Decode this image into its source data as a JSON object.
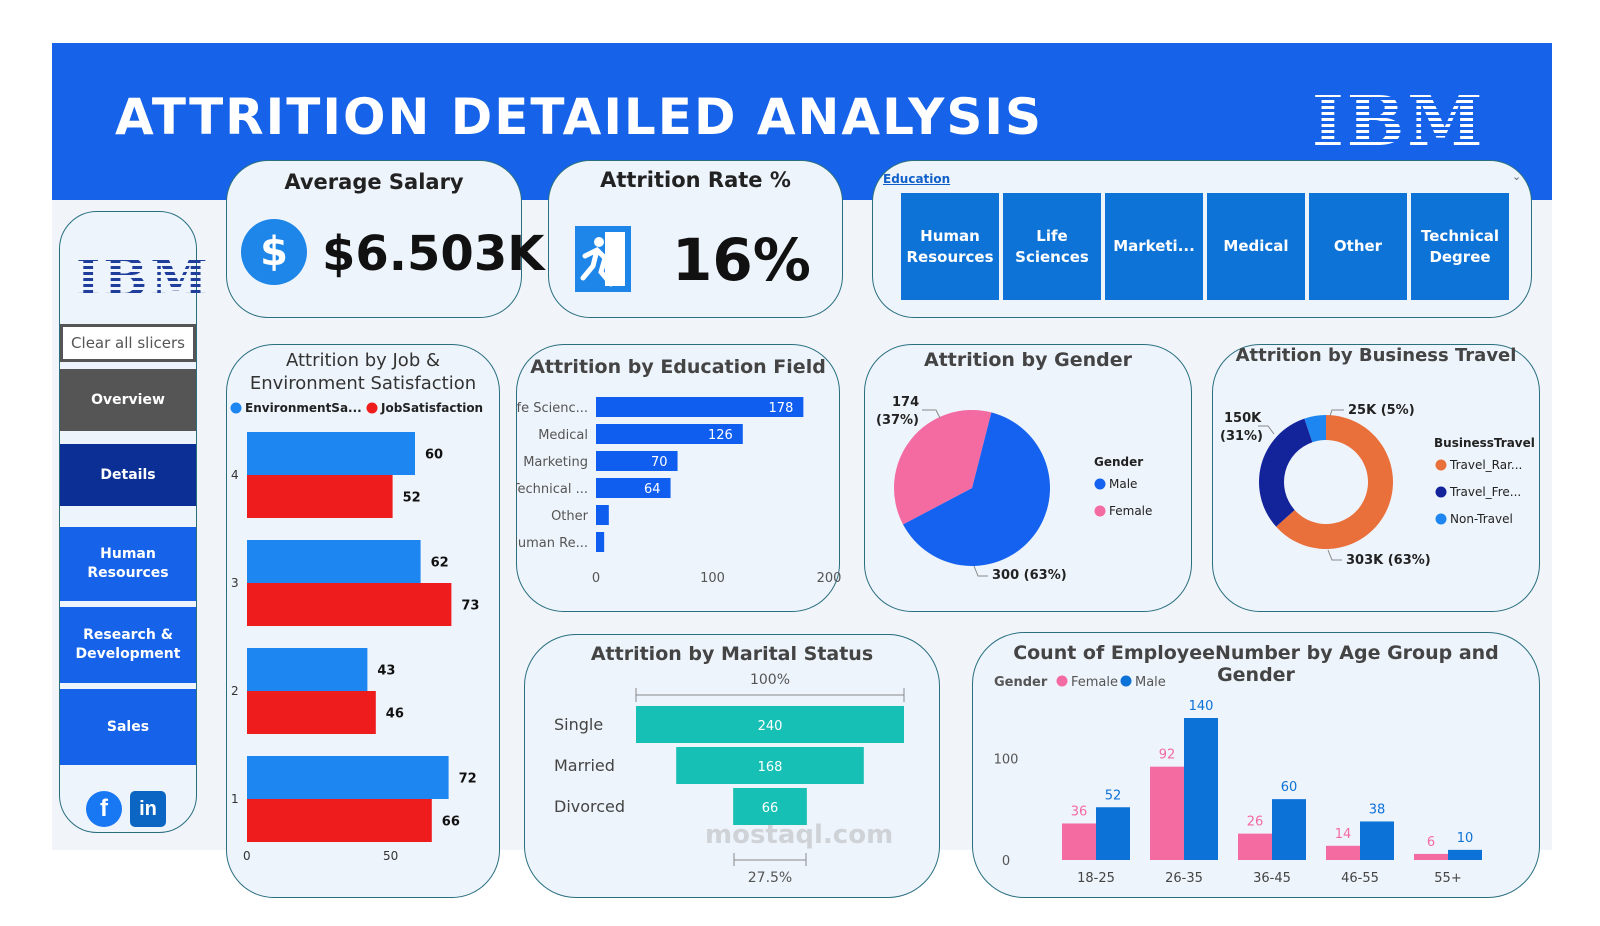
{
  "header": {
    "title": "ATTRITION DETAILED ANALYSIS",
    "logo_text": "IBM",
    "band_color": "#1662e8"
  },
  "sidebar": {
    "logo_text": "IBM",
    "clear_label": "Clear all slicers",
    "nav": [
      {
        "label": "Overview",
        "color": "#555555"
      },
      {
        "label": "Details",
        "color": "#0b2f94"
      },
      {
        "label": "Human Resources",
        "color": "#1662e8"
      },
      {
        "label": "Research & Development",
        "color": "#1662e8"
      },
      {
        "label": "Sales",
        "color": "#1662e8"
      }
    ],
    "social": [
      {
        "icon": "facebook-icon",
        "text": "f"
      },
      {
        "icon": "linkedin-icon",
        "text": "in"
      }
    ]
  },
  "kpis": {
    "avg_salary": {
      "label": "Average Salary",
      "value": "$6.503K",
      "icon": "dollar-icon",
      "icon_text": "$"
    },
    "attrition_rate": {
      "label": "Attrition Rate %",
      "value": "16%",
      "icon": "exit-runner-icon"
    }
  },
  "education_slicer": {
    "label": "Education",
    "options": [
      "Human Resources",
      "Life Sciences",
      "Marketi...",
      "Medical",
      "Other",
      "Technical Degree"
    ]
  },
  "charts": {
    "job_env": {
      "title": "Attrition by Job & Environment Satisfaction",
      "legend": [
        {
          "label": "EnvironmentSa...",
          "color": "#1e86f0"
        },
        {
          "label": "JobSatisfaction",
          "color": "#ee1c1c"
        }
      ]
    },
    "education_field": {
      "title": "Attrition by Education Field"
    },
    "gender": {
      "title": "Attrition by Gender",
      "legend_title": "Gender",
      "labels": [
        "174 (37%)",
        "300 (63%)"
      ]
    },
    "business_travel": {
      "title": "Attrition by Business Travel",
      "legend_title": "BusinessTravel",
      "labels": [
        "150K (31%)",
        "25K (5%)",
        "303K (63%)"
      ]
    },
    "marital": {
      "title": "Attrition by Marital Status",
      "top_label": "100%",
      "bottom_label": "27.5%"
    },
    "age_gender": {
      "title": "Count of EmployeeNumber by Age Group and Gender",
      "legend_title": "Gender"
    }
  },
  "chart_data": [
    {
      "type": "bar",
      "orientation": "horizontal",
      "title": "Attrition by Job & Environment Satisfaction",
      "categories": [
        "4",
        "3",
        "2",
        "1"
      ],
      "series": [
        {
          "name": "EnvironmentSa...",
          "values": [
            60,
            62,
            43,
            72
          ],
          "color": "#1e86f0"
        },
        {
          "name": "JobSatisfaction",
          "values": [
            52,
            73,
            46,
            66
          ],
          "color": "#ee1c1c"
        }
      ],
      "xticks": [
        "0",
        "50"
      ],
      "xlim": [
        0,
        75
      ]
    },
    {
      "type": "bar",
      "orientation": "horizontal",
      "title": "Attrition by Education Field",
      "categories": [
        "Life Scienc...",
        "Medical",
        "Marketing",
        "Technical ...",
        "Other",
        "Human Re..."
      ],
      "values": [
        178,
        126,
        70,
        64,
        11,
        7
      ],
      "data_labels": [
        "178",
        "126",
        "70",
        "64",
        "",
        ""
      ],
      "xticks": [
        "0",
        "100",
        "200"
      ],
      "xlim": [
        0,
        200
      ],
      "color": "#0f5ef0"
    },
    {
      "type": "pie",
      "title": "Attrition by Gender",
      "legend_title": "Gender",
      "labels": [
        "Male",
        "Female"
      ],
      "values": [
        300,
        174
      ],
      "colors": [
        "#1662f0",
        "#f36ba0"
      ]
    },
    {
      "type": "pie",
      "subtype": "donut",
      "title": "Attrition by Business Travel",
      "legend_title": "BusinessTravel",
      "labels": [
        "Travel_Rar...",
        "Travel_Fre...",
        "Non-Travel"
      ],
      "values": [
        303,
        150,
        25
      ],
      "colors": [
        "#e9703b",
        "#13239a",
        "#1e86f0"
      ]
    },
    {
      "type": "bar",
      "subtype": "funnel",
      "title": "Attrition by Marital Status",
      "categories": [
        "Single",
        "Married",
        "Divorced"
      ],
      "values": [
        240,
        168,
        66
      ],
      "color": "#17c0b5"
    },
    {
      "type": "bar",
      "title": "Count of EmployeeNumber by Age Group and Gender",
      "categories": [
        "18-25",
        "26-35",
        "36-45",
        "46-55",
        "55+"
      ],
      "series": [
        {
          "name": "Female",
          "values": [
            36,
            92,
            26,
            14,
            6
          ],
          "color": "#f36ba0"
        },
        {
          "name": "Male",
          "values": [
            52,
            140,
            60,
            38,
            10
          ],
          "color": "#0d72d8"
        }
      ],
      "yticks": [
        "0",
        "100"
      ],
      "ylim": [
        0,
        140
      ]
    }
  ],
  "watermark": "mostaql.com"
}
